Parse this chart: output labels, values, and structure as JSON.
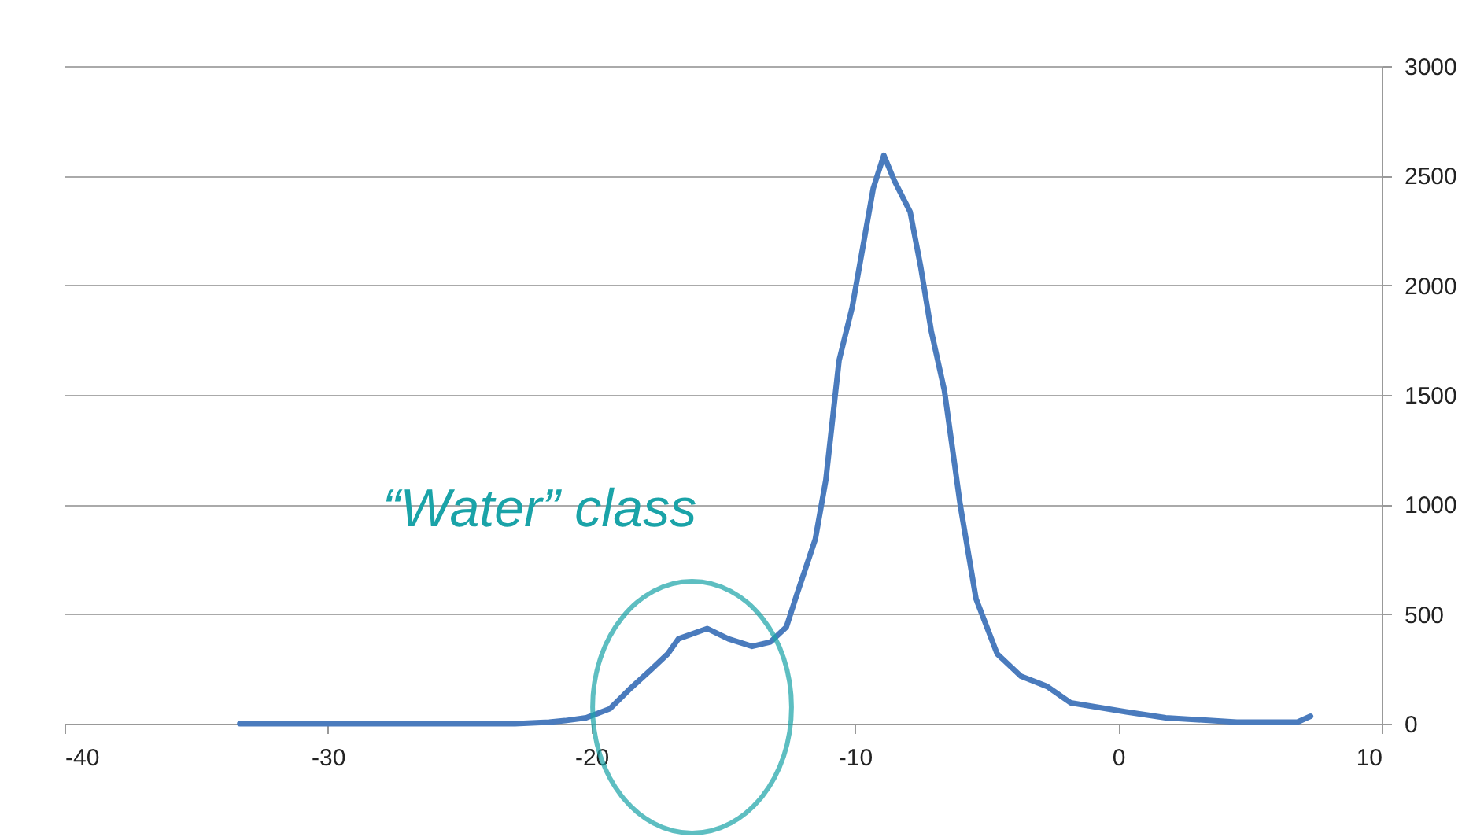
{
  "chart_data": {
    "type": "line",
    "x": [
      -33.35,
      -22.9,
      -21.6,
      -21.0,
      -20.2,
      -19.3,
      -18.5,
      -17.7,
      -17.1,
      -16.7,
      -15.6,
      -14.8,
      -13.9,
      -13.2,
      -12.6,
      -12.2,
      -11.5,
      -11.1,
      -10.6,
      -10.1,
      -9.6,
      -9.3,
      -8.9,
      -8.5,
      -7.9,
      -7.5,
      -7.1,
      -6.6,
      -6.0,
      -5.4,
      -4.6,
      -3.7,
      -2.7,
      -1.8,
      0.3,
      1.8,
      4.5,
      6.8,
      7.3
    ],
    "series": [
      {
        "color": "#4a7bbd",
        "values": [
          0,
          0,
          7,
          14,
          27,
          68,
          163,
          251,
          319,
          387,
          434,
          387,
          353,
          373,
          441,
          590,
          842,
          1113,
          1656,
          1900,
          2240,
          2443,
          2593,
          2477,
          2335,
          2084,
          1792,
          1520,
          998,
          570,
          319,
          217,
          170,
          95,
          54,
          27,
          7,
          7,
          34
        ]
      }
    ],
    "xlim": [
      -40,
      10
    ],
    "xticks": [
      -40,
      -30,
      -20,
      -10,
      0,
      10
    ],
    "ylim": [
      0,
      3000
    ],
    "yticks": [
      0,
      500,
      1000,
      1500,
      2000,
      2500,
      3000
    ],
    "grid": "y",
    "marker": "none",
    "line_style": "solid",
    "annotations": [
      {
        "text": "“Water” class",
        "x": -16,
        "y": 420
      }
    ]
  }
}
